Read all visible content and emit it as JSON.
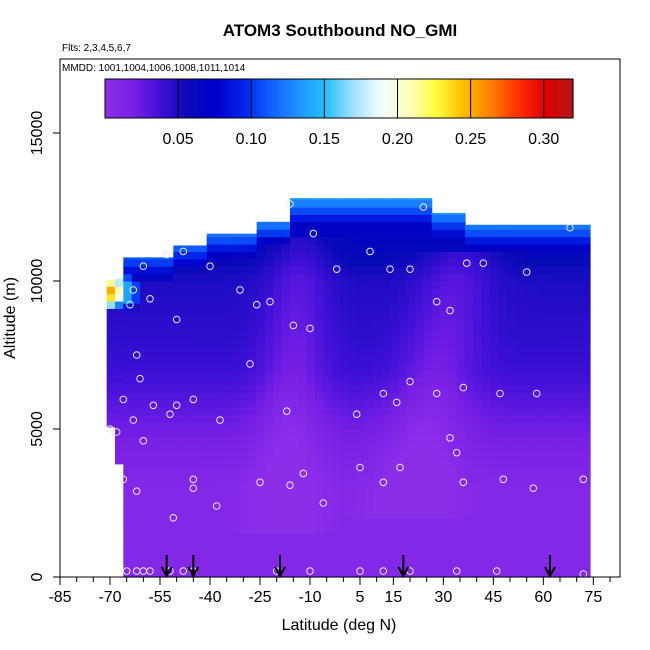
{
  "chart_data": {
    "type": "heatmap",
    "title": "ATOM3 Southbound NO_GMI",
    "flights_label": "Flts: 2,3,4,5,6,7",
    "dates_label": "MMDD: 1001,1004,1006,1008,1011,1014",
    "xlabel": "Latitude (deg N)",
    "ylabel": "Altitude (m)",
    "xlim": [
      -85,
      83
    ],
    "ylim": [
      0,
      17500
    ],
    "x_ticks": [
      -85,
      -70,
      -55,
      -40,
      -25,
      -10,
      5,
      15,
      30,
      45,
      60,
      75
    ],
    "x_minor_ticks": [
      -80,
      -75,
      -65,
      -60,
      -50,
      -45,
      -35,
      -30,
      -20,
      -15,
      -5,
      0,
      10,
      20,
      25,
      35,
      40,
      50,
      55,
      65,
      70,
      80
    ],
    "y_ticks": [
      0,
      5000,
      10000,
      15000
    ],
    "colorbar": {
      "min": 0.0,
      "max": 0.32,
      "ticks": [
        0.05,
        0.1,
        0.15,
        0.2,
        0.25,
        0.3
      ],
      "tick_labels": [
        "0.05",
        "0.10",
        "0.15",
        "0.20",
        "0.25",
        "0.30"
      ],
      "colors": [
        "#8b2ee8",
        "#7a20e6",
        "#4010d8",
        "#0a0ab8",
        "#0000c8",
        "#0022e8",
        "#1060ff",
        "#2090ff",
        "#20c0ff",
        "#a0e0ff",
        "#f0ffff",
        "#ffffc0",
        "#ffff40",
        "#ffc000",
        "#ff8000",
        "#ff3000",
        "#e00000",
        "#b01818"
      ]
    },
    "arrow_latitudes": [
      -53,
      -45,
      -19,
      18,
      62
    ],
    "sample_points": [
      {
        "lat": -65,
        "alt": 200
      },
      {
        "lat": -62,
        "alt": 200
      },
      {
        "lat": -60,
        "alt": 200
      },
      {
        "lat": -58,
        "alt": 200
      },
      {
        "lat": -52,
        "alt": 200
      },
      {
        "lat": -48,
        "alt": 200
      },
      {
        "lat": -45,
        "alt": 200
      },
      {
        "lat": -20,
        "alt": 200
      },
      {
        "lat": -10,
        "alt": 200
      },
      {
        "lat": 5,
        "alt": 200
      },
      {
        "lat": 12,
        "alt": 200
      },
      {
        "lat": 20,
        "alt": 200
      },
      {
        "lat": 34,
        "alt": 200
      },
      {
        "lat": 46,
        "alt": 200
      },
      {
        "lat": 72,
        "alt": 100
      },
      {
        "lat": -66,
        "alt": 3300
      },
      {
        "lat": -62,
        "alt": 2900
      },
      {
        "lat": -51,
        "alt": 2000
      },
      {
        "lat": -45,
        "alt": 3300
      },
      {
        "lat": -45,
        "alt": 3000
      },
      {
        "lat": -38,
        "alt": 2400
      },
      {
        "lat": -25,
        "alt": 3200
      },
      {
        "lat": -16,
        "alt": 3100
      },
      {
        "lat": -12,
        "alt": 3500
      },
      {
        "lat": -6,
        "alt": 2500
      },
      {
        "lat": 5,
        "alt": 3700
      },
      {
        "lat": 12,
        "alt": 3200
      },
      {
        "lat": 17,
        "alt": 3700
      },
      {
        "lat": 32,
        "alt": 4700
      },
      {
        "lat": 34,
        "alt": 4200
      },
      {
        "lat": 36,
        "alt": 3200
      },
      {
        "lat": 48,
        "alt": 3300
      },
      {
        "lat": 57,
        "alt": 3000
      },
      {
        "lat": 72,
        "alt": 3300
      },
      {
        "lat": -66,
        "alt": 6000
      },
      {
        "lat": -63,
        "alt": 5300
      },
      {
        "lat": -60,
        "alt": 4600
      },
      {
        "lat": -57,
        "alt": 5800
      },
      {
        "lat": -52,
        "alt": 5500
      },
      {
        "lat": -50,
        "alt": 5800
      },
      {
        "lat": -45,
        "alt": 6000
      },
      {
        "lat": -37,
        "alt": 5300
      },
      {
        "lat": -17,
        "alt": 5600
      },
      {
        "lat": 4,
        "alt": 5500
      },
      {
        "lat": 12,
        "alt": 6200
      },
      {
        "lat": 16,
        "alt": 5900
      },
      {
        "lat": 20,
        "alt": 6600
      },
      {
        "lat": 28,
        "alt": 6200
      },
      {
        "lat": 36,
        "alt": 6400
      },
      {
        "lat": 47,
        "alt": 6200
      },
      {
        "lat": 58,
        "alt": 6200
      },
      {
        "lat": -70,
        "alt": 5000
      },
      {
        "lat": -68,
        "alt": 4900
      },
      {
        "lat": -61,
        "alt": 6700
      },
      {
        "lat": -62,
        "alt": 7500
      },
      {
        "lat": -50,
        "alt": 8700
      },
      {
        "lat": -28,
        "alt": 7200
      },
      {
        "lat": -15,
        "alt": 8500
      },
      {
        "lat": -10,
        "alt": 8400
      },
      {
        "lat": 28,
        "alt": 9300
      },
      {
        "lat": 32,
        "alt": 9000
      },
      {
        "lat": -68,
        "alt": 9900
      },
      {
        "lat": -63,
        "alt": 9700
      },
      {
        "lat": -58,
        "alt": 9400
      },
      {
        "lat": -64,
        "alt": 9200
      },
      {
        "lat": -40,
        "alt": 10500
      },
      {
        "lat": -31,
        "alt": 9700
      },
      {
        "lat": -26,
        "alt": 9200
      },
      {
        "lat": -22,
        "alt": 9300
      },
      {
        "lat": -53,
        "alt": 10900
      },
      {
        "lat": -48,
        "alt": 11000
      },
      {
        "lat": -60,
        "alt": 10500
      },
      {
        "lat": -9,
        "alt": 11600
      },
      {
        "lat": -2,
        "alt": 10400
      },
      {
        "lat": 8,
        "alt": 11000
      },
      {
        "lat": 14,
        "alt": 10400
      },
      {
        "lat": 20,
        "alt": 10400
      },
      {
        "lat": 37,
        "alt": 10600
      },
      {
        "lat": 42,
        "alt": 10600
      },
      {
        "lat": 55,
        "alt": 10300
      },
      {
        "lat": 68,
        "alt": 11800
      },
      {
        "lat": -16,
        "alt": 12600
      },
      {
        "lat": 24,
        "alt": 12500
      }
    ]
  }
}
